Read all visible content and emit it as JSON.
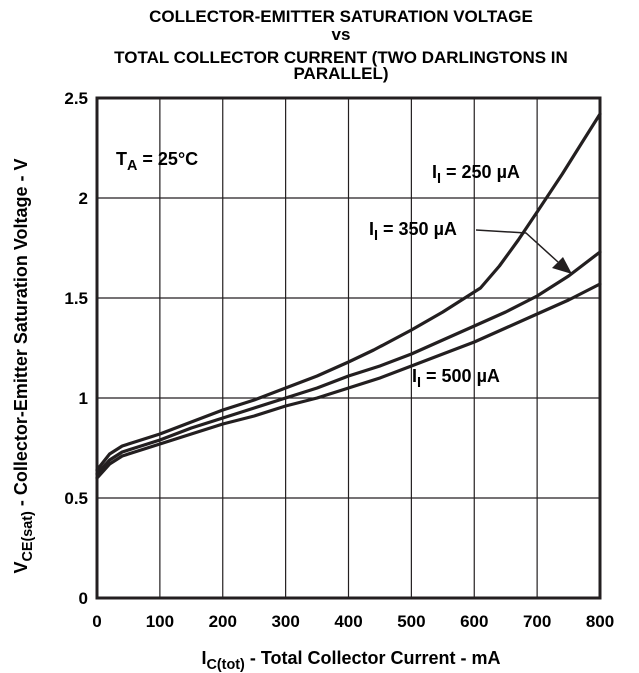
{
  "chart_data": {
    "type": "line",
    "title_lines": [
      "COLLECTOR-EMITTER SATURATION VOLTAGE",
      "vs",
      "TOTAL COLLECTOR CURRENT (TWO DARLINGTONS IN",
      "PARALLEL)"
    ],
    "xlabel": {
      "prefix": "I",
      "sub": "C(tot)",
      "text": " - Total Collector Current - mA"
    },
    "ylabel": {
      "prefix": "V",
      "sub": "CE(sat)",
      "text": " - Collector-Emitter Saturation Voltage - V"
    },
    "xlim": [
      0,
      800
    ],
    "ylim": [
      0,
      2.5
    ],
    "xticks": [
      0,
      100,
      200,
      300,
      400,
      500,
      600,
      700,
      800
    ],
    "yticks": [
      0,
      0.5,
      1,
      1.5,
      2,
      2.5
    ],
    "xtick_labels": [
      "0",
      "100",
      "200",
      "300",
      "400",
      "500",
      "600",
      "700",
      "800"
    ],
    "ytick_labels": [
      "0",
      "0.5",
      "1",
      "1.5",
      "2",
      "2.5"
    ],
    "grid": true,
    "line_color": "#231f20",
    "condition": {
      "prefix": "T",
      "sub": "A",
      "text": " = 25°C"
    },
    "series": [
      {
        "name": "250 µA",
        "label_prefix": "I",
        "label_sub": "I",
        "label_text": " = 250 µA",
        "x": [
          0,
          20,
          40,
          60,
          100,
          150,
          200,
          250,
          300,
          350,
          400,
          440,
          500,
          550,
          610,
          640,
          670,
          700,
          740,
          770,
          800
        ],
        "y": [
          0.64,
          0.72,
          0.76,
          0.78,
          0.82,
          0.88,
          0.94,
          0.99,
          1.05,
          1.11,
          1.18,
          1.24,
          1.34,
          1.43,
          1.55,
          1.66,
          1.79,
          1.93,
          2.12,
          2.27,
          2.42
        ]
      },
      {
        "name": "350 µA",
        "label_prefix": "I",
        "label_sub": "I",
        "label_text": " = 350 µA",
        "x": [
          0,
          20,
          40,
          60,
          100,
          150,
          200,
          250,
          300,
          350,
          400,
          450,
          500,
          550,
          600,
          650,
          700,
          750,
          800
        ],
        "y": [
          0.62,
          0.69,
          0.73,
          0.75,
          0.79,
          0.85,
          0.9,
          0.95,
          1.0,
          1.05,
          1.11,
          1.16,
          1.22,
          1.29,
          1.36,
          1.43,
          1.51,
          1.61,
          1.73
        ]
      },
      {
        "name": "500 µA",
        "label_prefix": "I",
        "label_sub": "I",
        "label_text": " = 500 µA",
        "x": [
          0,
          20,
          40,
          60,
          100,
          150,
          200,
          250,
          300,
          350,
          400,
          450,
          500,
          550,
          600,
          650,
          700,
          750,
          800
        ],
        "y": [
          0.6,
          0.67,
          0.71,
          0.73,
          0.77,
          0.82,
          0.87,
          0.91,
          0.96,
          1.0,
          1.05,
          1.1,
          1.16,
          1.22,
          1.28,
          1.35,
          1.42,
          1.49,
          1.57
        ]
      }
    ]
  }
}
